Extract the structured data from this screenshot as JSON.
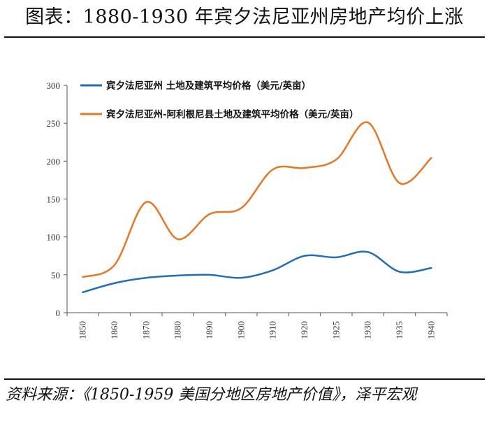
{
  "title": "图表：1880-1930 年宾夕法尼亚州房地产均价上涨",
  "source": "资料来源：《1850-1959 美国分地区房地产价值》，泽平宏观",
  "chart_data": {
    "type": "line",
    "categories": [
      "1850",
      "1860",
      "1870",
      "1880",
      "1890",
      "1900",
      "1910",
      "1920",
      "1925",
      "1930",
      "1935",
      "1940"
    ],
    "ylim": [
      0,
      300
    ],
    "yticks": [
      0,
      50,
      100,
      150,
      200,
      250,
      300
    ],
    "grid": false,
    "legend_position": "top-left",
    "series": [
      {
        "name": "宾夕法尼亚州 土地及建筑平均价格（美元/英亩）",
        "color": "#1F6FB8",
        "values": [
          27,
          39,
          46,
          49,
          50,
          46,
          56,
          75,
          73,
          80,
          54,
          59
        ]
      },
      {
        "name": "宾夕法尼亚州-阿利根尼县土地及建筑平均价格（美元/英亩）",
        "color": "#E87722",
        "values": [
          47,
          63,
          146,
          97,
          130,
          138,
          189,
          191,
          202,
          251,
          171,
          204
        ]
      }
    ]
  }
}
